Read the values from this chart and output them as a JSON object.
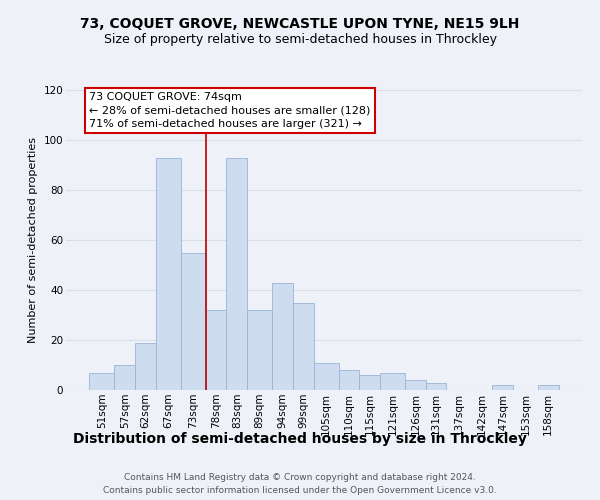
{
  "title": "73, COQUET GROVE, NEWCASTLE UPON TYNE, NE15 9LH",
  "subtitle": "Size of property relative to semi-detached houses in Throckley",
  "xlabel": "Distribution of semi-detached houses by size in Throckley",
  "ylabel": "Number of semi-detached properties",
  "bar_color": "#cddcef",
  "bar_edge_color": "#9ab4d4",
  "background_color": "#eef2f8",
  "grid_color": "#d8dfe8",
  "marker_line_color": "#bb0000",
  "annotation_title": "73 COQUET GROVE: 74sqm",
  "annotation_line1": "← 28% of semi-detached houses are smaller (128)",
  "annotation_line2": "71% of semi-detached houses are larger (321) →",
  "annotation_box_color": "#ffffff",
  "annotation_box_edge": "#cc0000",
  "categories": [
    "51sqm",
    "57sqm",
    "62sqm",
    "67sqm",
    "73sqm",
    "78sqm",
    "83sqm",
    "89sqm",
    "94sqm",
    "99sqm",
    "105sqm",
    "110sqm",
    "115sqm",
    "121sqm",
    "126sqm",
    "131sqm",
    "137sqm",
    "142sqm",
    "147sqm",
    "153sqm",
    "158sqm"
  ],
  "values": [
    7,
    10,
    19,
    93,
    55,
    32,
    93,
    32,
    43,
    35,
    11,
    8,
    6,
    7,
    4,
    3,
    0,
    0,
    2,
    0,
    2
  ],
  "bin_edges": [
    48,
    54,
    59,
    64,
    70,
    76,
    81,
    86,
    92,
    97,
    102,
    108,
    113,
    118,
    124,
    129,
    134,
    140,
    145,
    150,
    156,
    161
  ],
  "ylim": [
    0,
    120
  ],
  "yticks": [
    0,
    20,
    40,
    60,
    80,
    100,
    120
  ],
  "footer_line1": "Contains HM Land Registry data © Crown copyright and database right 2024.",
  "footer_line2": "Contains public sector information licensed under the Open Government Licence v3.0.",
  "title_fontsize": 10,
  "subtitle_fontsize": 9,
  "xlabel_fontsize": 10,
  "ylabel_fontsize": 8,
  "tick_fontsize": 7.5,
  "annotation_fontsize": 8,
  "footer_fontsize": 6.5
}
